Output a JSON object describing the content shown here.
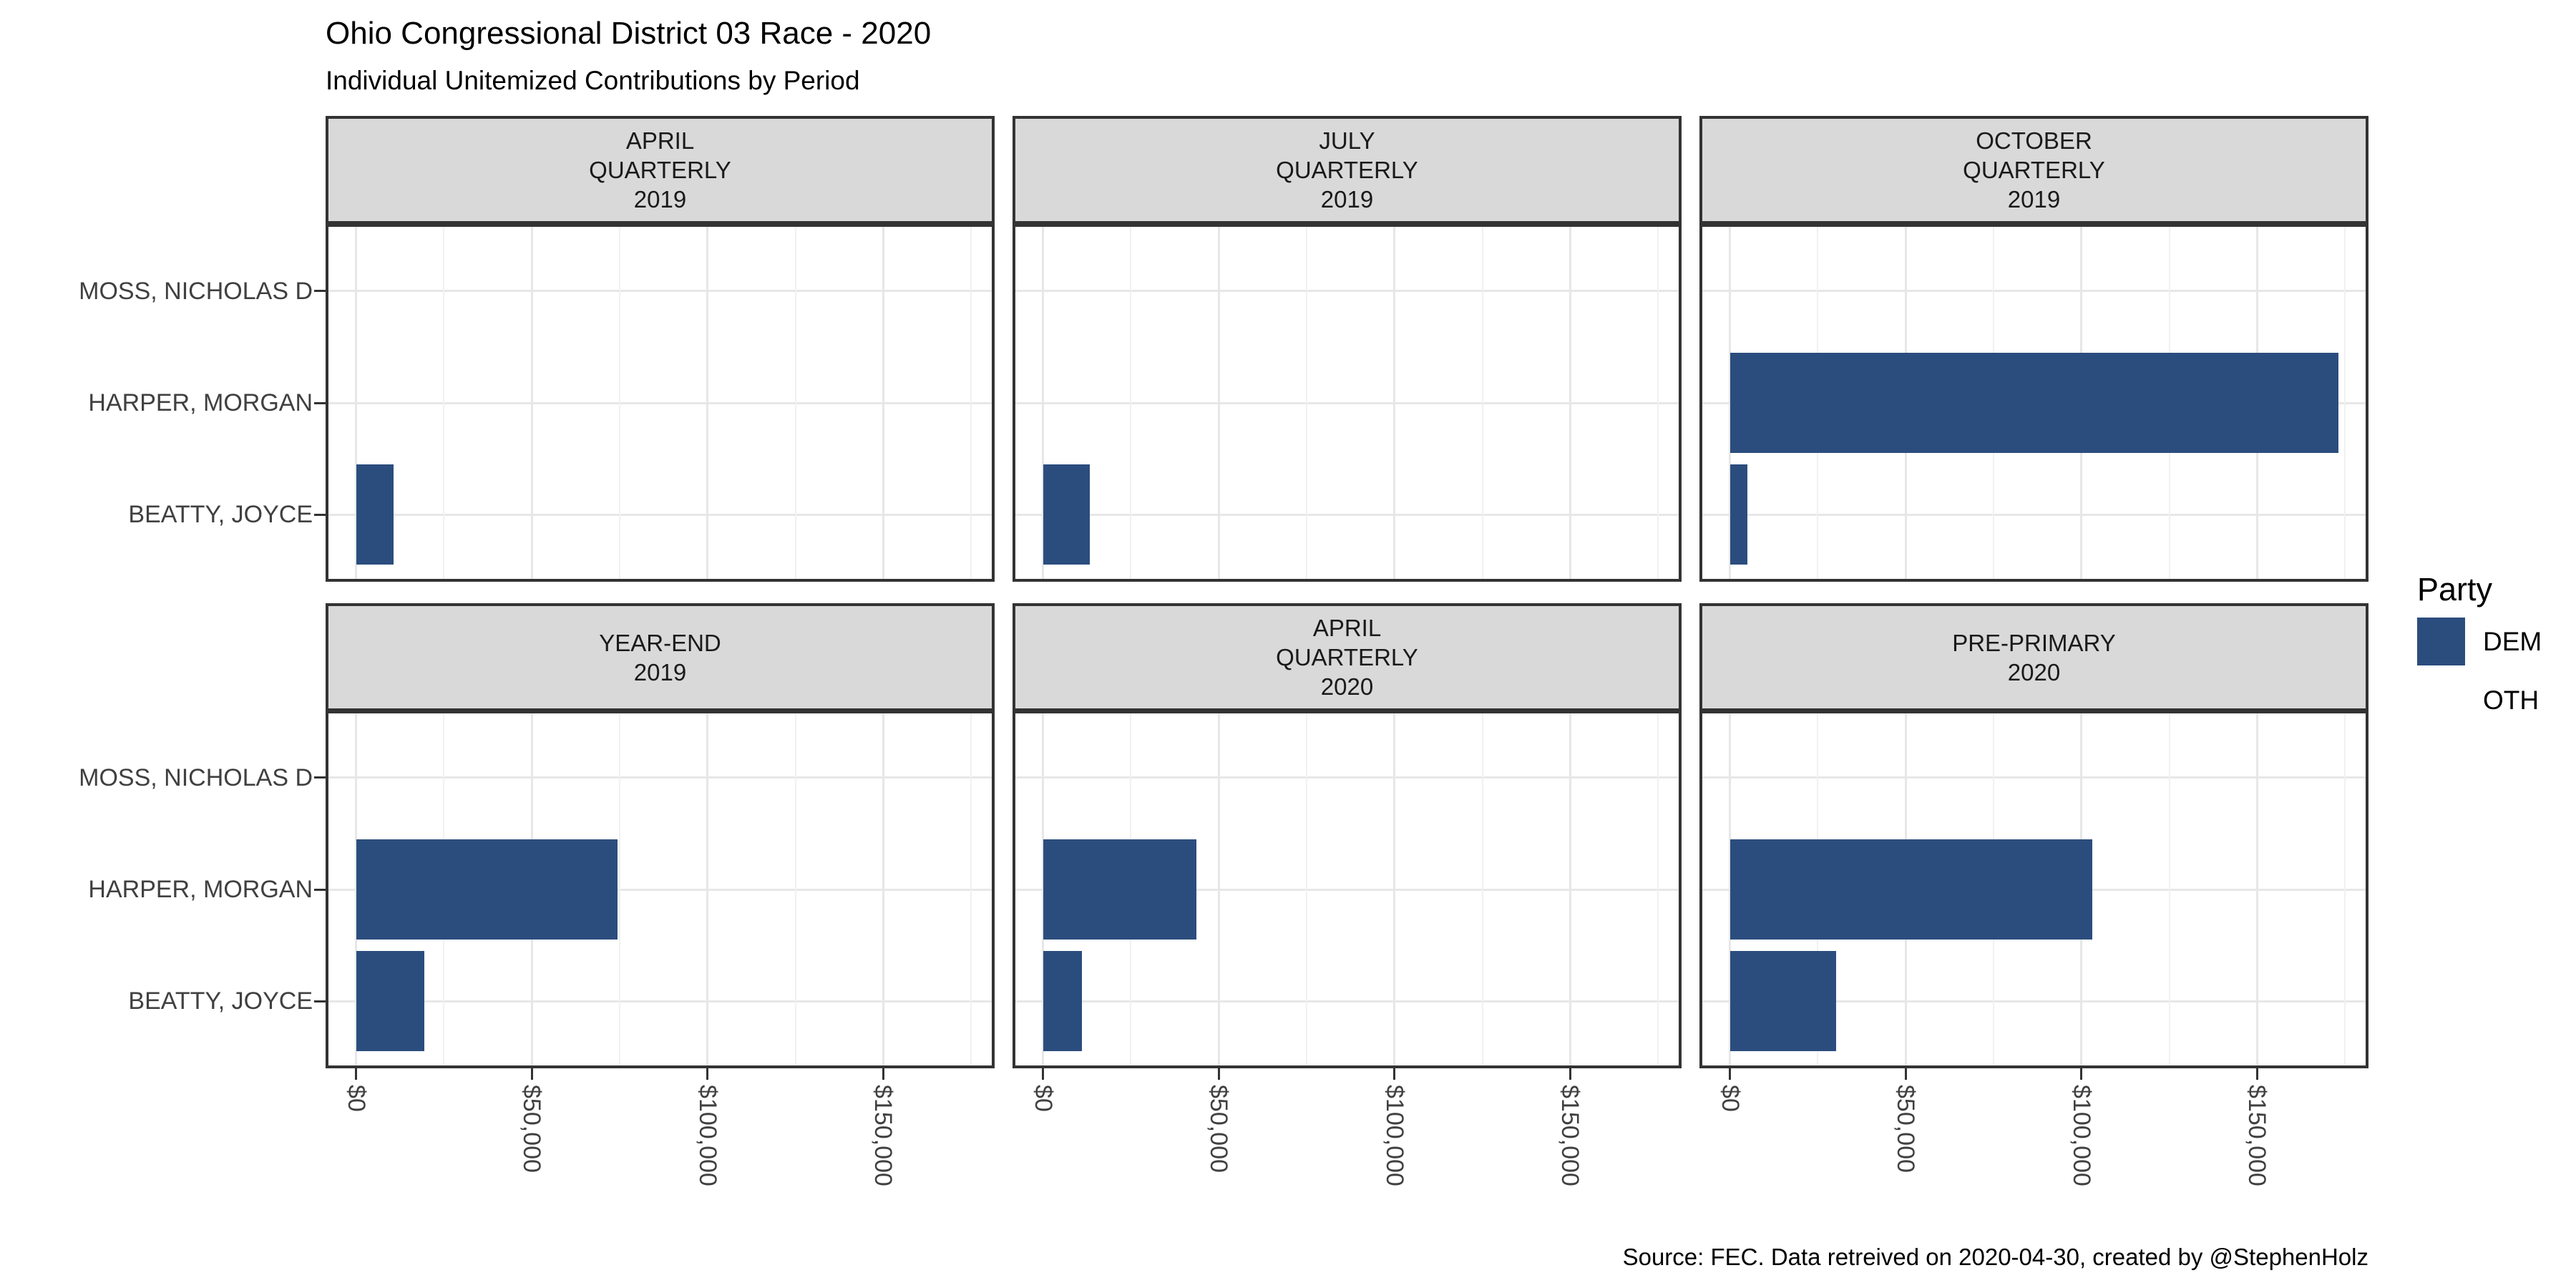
{
  "page": {
    "background": "#FFFFFF"
  },
  "chart_data": {
    "type": "bar",
    "orientation": "horizontal",
    "title": "Ohio Congressional District 03 Race - 2020",
    "subtitle": "Individual Unitemized Contributions by Period",
    "caption": "Source: FEC. Data retreived on 2020-04-30, created by @StephenHolz",
    "y_categories_top_to_bottom": [
      "MOSS, NICHOLAS D",
      "HARPER, MORGAN",
      "BEATTY, JOYCE"
    ],
    "x_axis": {
      "tick_values": [
        0,
        50000,
        100000,
        150000
      ],
      "tick_labels": [
        "$0",
        "$50,000",
        "$100,000",
        "$150,000"
      ],
      "minor_tick_values": [
        25000,
        75000,
        125000,
        175000
      ],
      "data_range": [
        0,
        173000
      ],
      "expansion_fraction": 0.05,
      "label_rotation_deg": 90
    },
    "facet_layout": {
      "nrow": 2,
      "ncol": 3
    },
    "facets": [
      {
        "strip_lines": [
          "APRIL",
          "QUARTERLY",
          "2019"
        ],
        "values": [
          null,
          null,
          10700
        ]
      },
      {
        "strip_lines": [
          "JULY",
          "QUARTERLY",
          "2019"
        ],
        "values": [
          null,
          null,
          13300
        ]
      },
      {
        "strip_lines": [
          "OCTOBER",
          "QUARTERLY",
          "2019"
        ],
        "values": [
          null,
          173000,
          5000
        ]
      },
      {
        "strip_lines": [
          "YEAR-END",
          "2019"
        ],
        "values": [
          null,
          74400,
          19500
        ]
      },
      {
        "strip_lines": [
          "APRIL",
          "QUARTERLY",
          "2020"
        ],
        "values": [
          null,
          43700,
          11000
        ]
      },
      {
        "strip_lines": [
          "PRE-PRIMARY",
          "2020"
        ],
        "values": [
          null,
          103000,
          30200
        ]
      }
    ],
    "bar_color_hex": "#2B4D7E",
    "legend": {
      "title": "Party",
      "position": "right",
      "entries": [
        {
          "label": "DEM",
          "color": "#2B4D7E"
        },
        {
          "label": "OTH",
          "color": "#FFFFFF"
        }
      ]
    },
    "grid": "major-and-minor",
    "style_colors": {
      "strip_background": "#D9D9D9",
      "panel_border": "#333333",
      "grid_major": "#E7E7E7",
      "grid_minor": "#F1F1F1",
      "axis_text": "#404040",
      "tick_mark": "#333333"
    }
  }
}
